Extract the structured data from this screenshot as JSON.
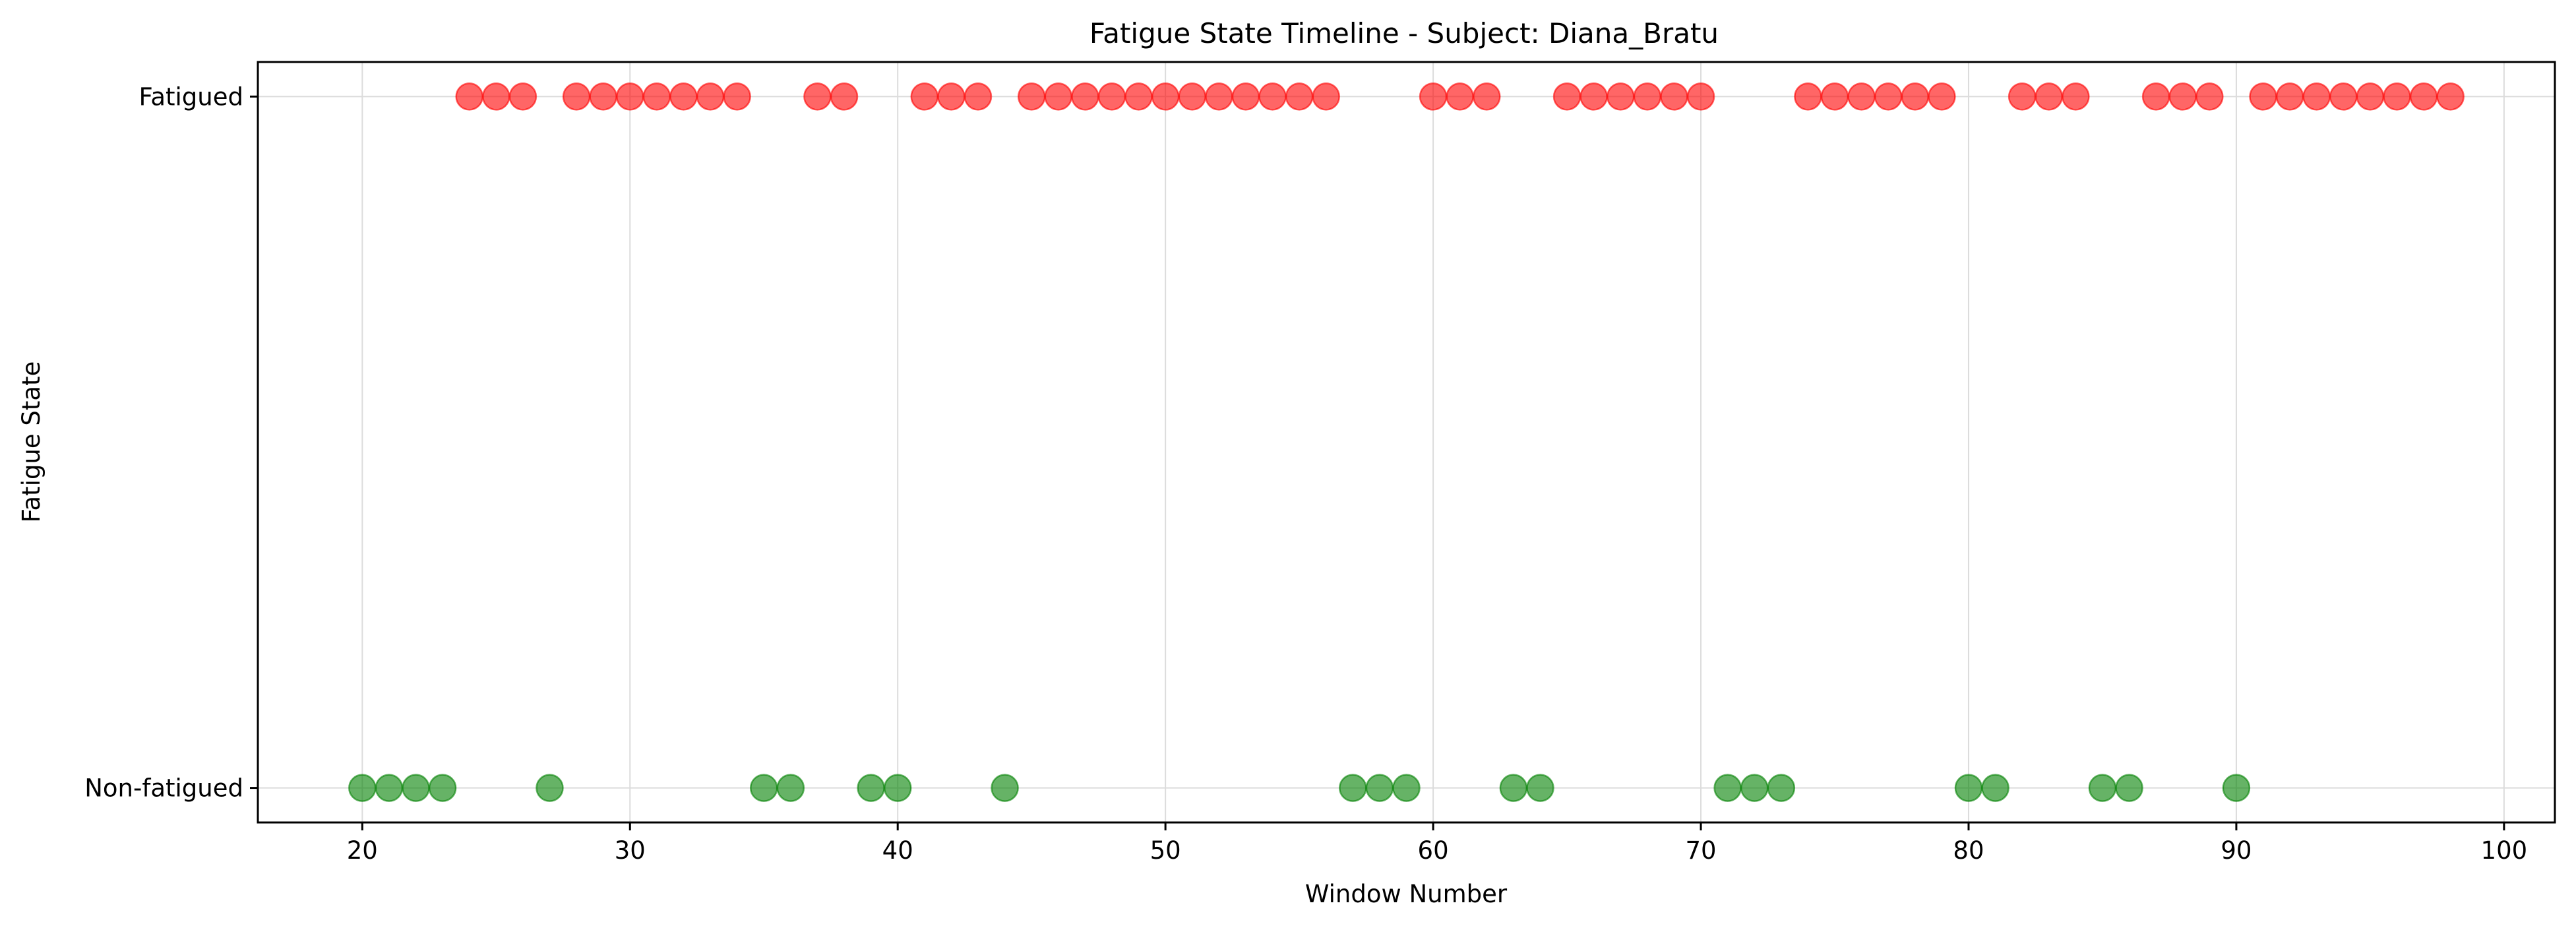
{
  "chart_data": {
    "type": "scatter",
    "title": "Fatigue State Timeline - Subject: Diana_Bratu",
    "xlabel": "Window Number",
    "ylabel": "Fatigue State",
    "xlim": [
      16.1,
      101.9
    ],
    "ylim": [
      -0.05,
      1.05
    ],
    "xticks": [
      20,
      30,
      40,
      50,
      60,
      70,
      80,
      90,
      100
    ],
    "xtick_labels": [
      "20",
      "30",
      "40",
      "50",
      "60",
      "70",
      "80",
      "90",
      "100"
    ],
    "yticks": [
      0,
      1
    ],
    "ytick_labels": [
      "Non-fatigued",
      "Fatigued"
    ],
    "grid": true,
    "series": [
      {
        "state": 1,
        "color": "#ff0000",
        "x": [
          24,
          25,
          26,
          28,
          29,
          30,
          31,
          32,
          33,
          34,
          37,
          38,
          41,
          42,
          43,
          45,
          46,
          47,
          48,
          49,
          50,
          51,
          52,
          53,
          54,
          55,
          56,
          60,
          61,
          62,
          65,
          66,
          67,
          68,
          69,
          70,
          74,
          75,
          76,
          77,
          78,
          79,
          82,
          83,
          84,
          87,
          88,
          89,
          91,
          92,
          93,
          94,
          95,
          96,
          97,
          98
        ]
      },
      {
        "state": 0,
        "color": "#008000",
        "x": [
          20,
          21,
          22,
          23,
          27,
          35,
          36,
          39,
          40,
          44,
          57,
          58,
          59,
          63,
          64,
          71,
          72,
          73,
          80,
          81,
          85,
          86,
          90
        ]
      }
    ]
  }
}
